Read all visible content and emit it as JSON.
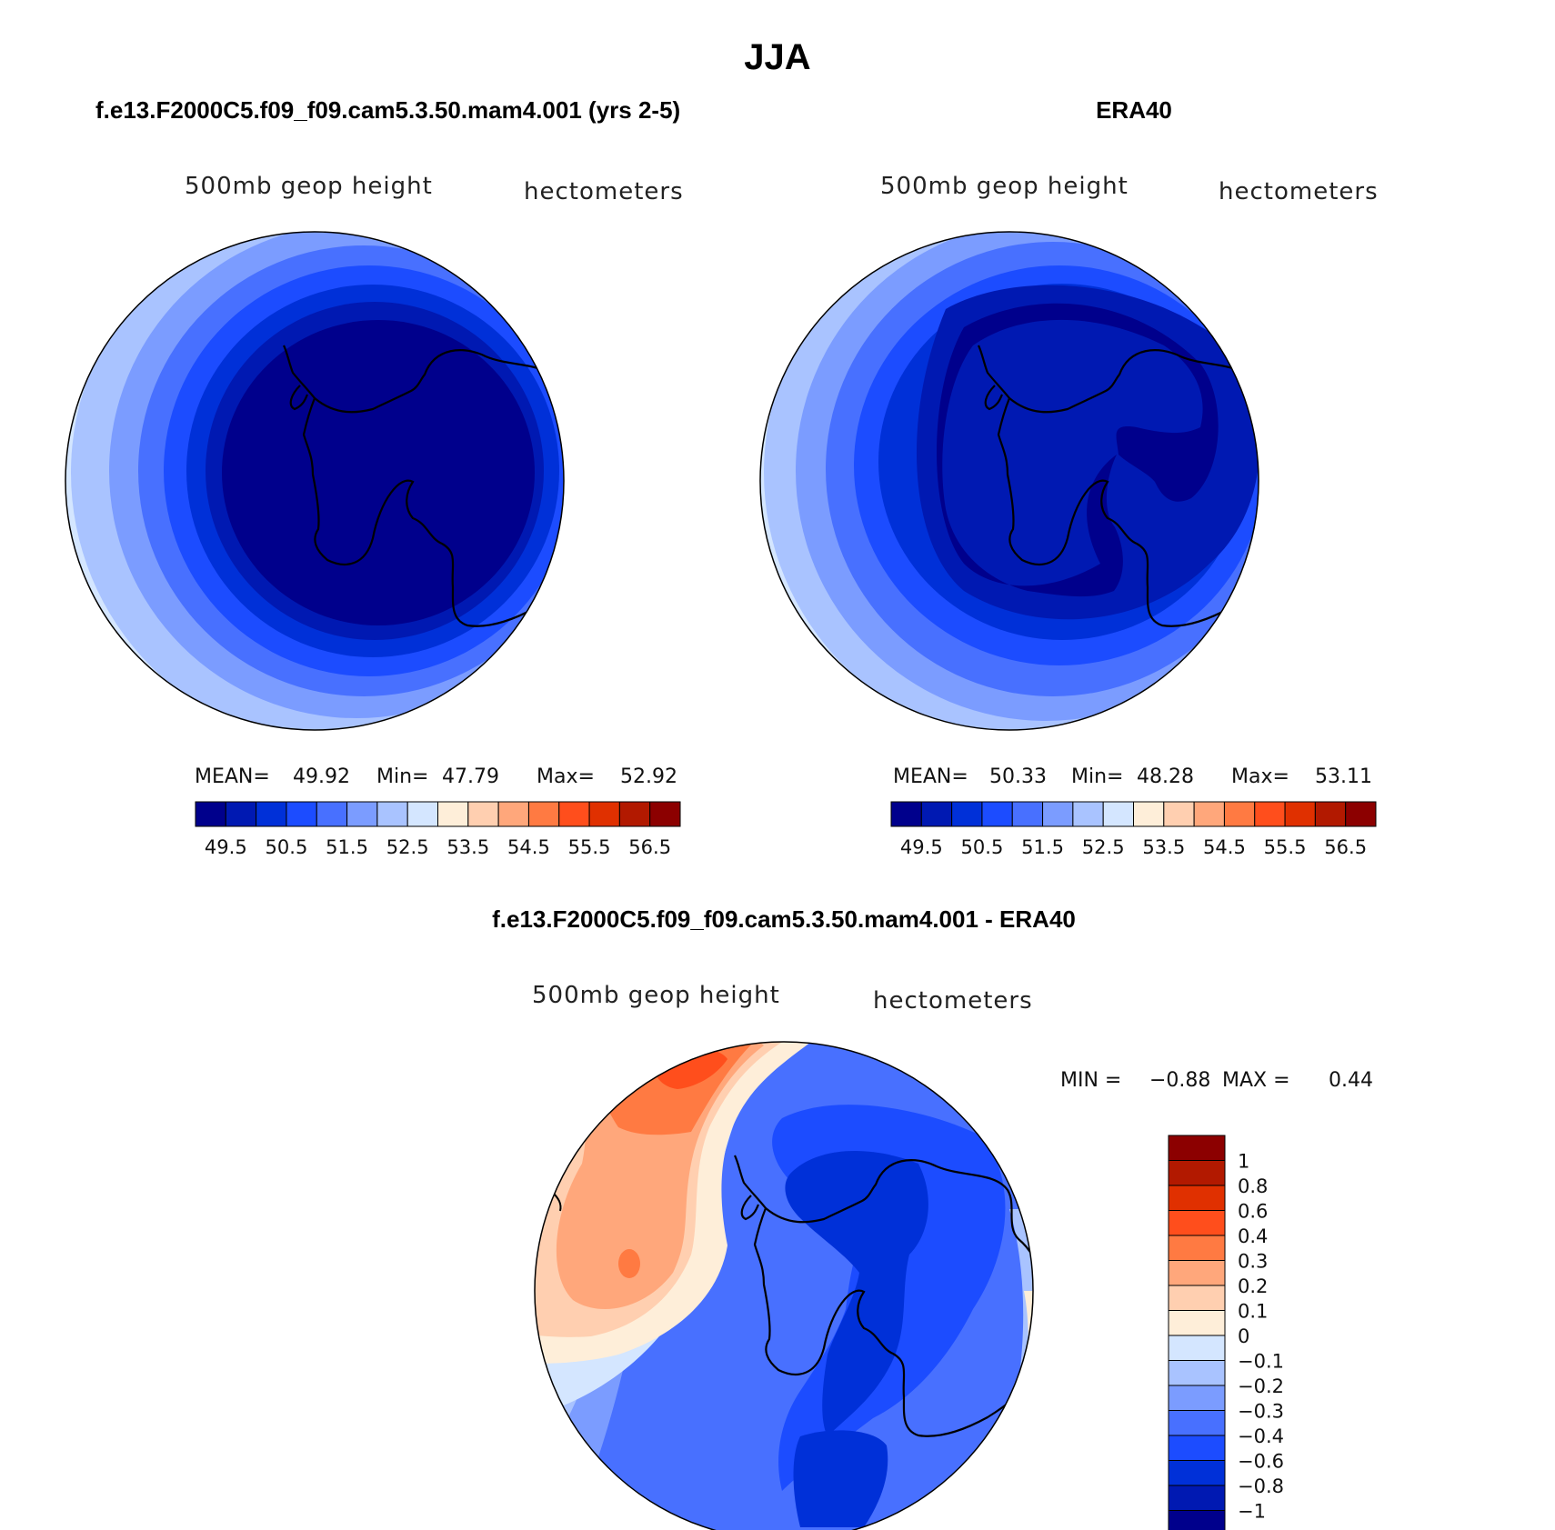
{
  "figure": {
    "title": "JJA"
  },
  "colors": {
    "scale": [
      "#00008c",
      "#0019b2",
      "#0030d8",
      "#1c4cff",
      "#4870ff",
      "#7b9cff",
      "#a9c3ff",
      "#d4e6ff",
      "#feeed9",
      "#ffcfb0",
      "#ffa77b",
      "#ff7a42",
      "#ff4e1c",
      "#e03000",
      "#b21900",
      "#8c0000"
    ],
    "coast": "#000000"
  },
  "chart_data": [
    {
      "type": "contour_map",
      "panel": "model",
      "title": "f.e13.F2000C5.f09_f09.cam5.3.50.mam4.001 (yrs 2-5)",
      "field": "500mb geop height",
      "units": "hectometers",
      "stats": {
        "mean_label": "MEAN=",
        "mean": "49.92",
        "min_label": "Min=",
        "min": "47.79",
        "max_label": "Max=",
        "max": "52.92"
      },
      "colorbar": {
        "labels": [
          "49.5",
          "50.5",
          "51.5",
          "52.5",
          "53.5",
          "54.5",
          "55.5",
          "56.5"
        ]
      }
    },
    {
      "type": "contour_map",
      "panel": "obs",
      "title": "ERA40",
      "field": "500mb geop height",
      "units": "hectometers",
      "stats": {
        "mean_label": "MEAN=",
        "mean": "50.33",
        "min_label": "Min=",
        "min": "48.28",
        "max_label": "Max=",
        "max": "53.11"
      },
      "colorbar": {
        "labels": [
          "49.5",
          "50.5",
          "51.5",
          "52.5",
          "53.5",
          "54.5",
          "55.5",
          "56.5"
        ]
      }
    },
    {
      "type": "contour_map",
      "panel": "difference",
      "title": "f.e13.F2000C5.f09_f09.cam5.3.50.mam4.001 - ERA40",
      "field": "500mb geop height",
      "units": "hectometers",
      "stats": {
        "min_label": "MIN =",
        "min": "−0.88",
        "max_label": "MAX =",
        "max": "0.44"
      },
      "colorbar": {
        "labels": [
          "1",
          "0.8",
          "0.6",
          "0.4",
          "0.3",
          "0.2",
          "0.1",
          "0",
          "−0.1",
          "−0.2",
          "−0.3",
          "−0.4",
          "−0.6",
          "−0.8",
          "−1"
        ]
      }
    }
  ]
}
